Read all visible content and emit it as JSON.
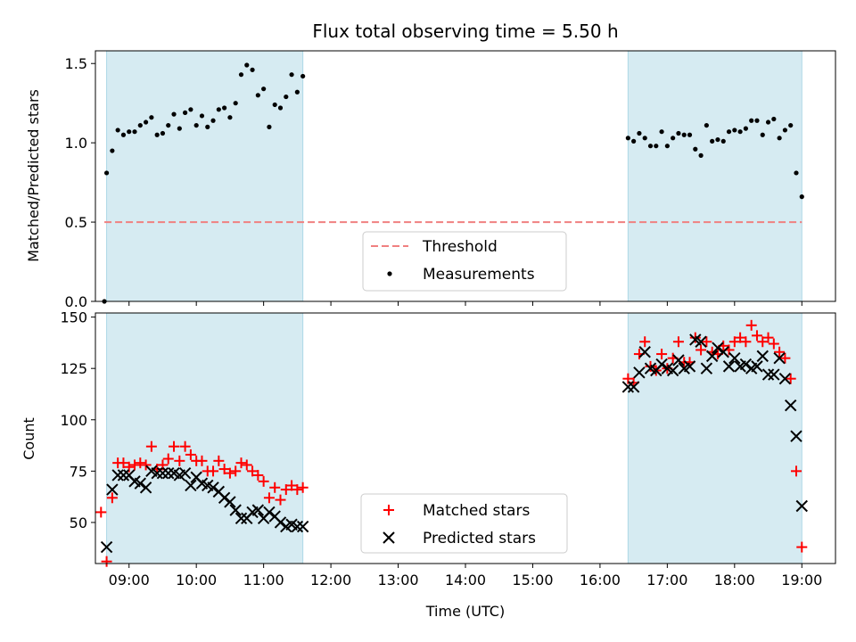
{
  "title": "Flux total observing time = 5.50 h",
  "chart_data": [
    {
      "type": "scatter",
      "ylabel": "Matched/Predicted stars",
      "ylim": [
        0.0,
        1.58
      ],
      "yticks": [
        "0.0",
        "0.5",
        "1.0",
        "1.5"
      ],
      "ytick_values": [
        0.0,
        0.5,
        1.0,
        1.5
      ],
      "xlim": [
        "08:30",
        "19:30"
      ],
      "shaded_spans": [
        [
          "08:40",
          "11:35"
        ],
        [
          "16:25",
          "19:00"
        ]
      ],
      "legend_position": "lower-center",
      "threshold": {
        "name": "Threshold",
        "value": 0.5,
        "x_range": [
          "08:38",
          "19:00"
        ],
        "color": "#f08080"
      },
      "series": [
        {
          "name": "Measurements",
          "color": "#000000",
          "x": [
            "08:38",
            "08:40",
            "08:45",
            "08:50",
            "08:55",
            "09:00",
            "09:05",
            "09:10",
            "09:15",
            "09:20",
            "09:25",
            "09:30",
            "09:35",
            "09:40",
            "09:45",
            "09:50",
            "09:55",
            "10:00",
            "10:05",
            "10:10",
            "10:15",
            "10:20",
            "10:25",
            "10:30",
            "10:35",
            "10:40",
            "10:45",
            "10:50",
            "10:55",
            "11:00",
            "11:05",
            "11:10",
            "11:15",
            "11:20",
            "11:25",
            "11:30",
            "11:35",
            "16:25",
            "16:30",
            "16:35",
            "16:40",
            "16:45",
            "16:50",
            "16:55",
            "17:00",
            "17:05",
            "17:10",
            "17:15",
            "17:20",
            "17:25",
            "17:30",
            "17:35",
            "17:40",
            "17:45",
            "17:50",
            "17:55",
            "18:00",
            "18:05",
            "18:10",
            "18:15",
            "18:20",
            "18:25",
            "18:30",
            "18:35",
            "18:40",
            "18:45",
            "18:50",
            "18:55",
            "19:00"
          ],
          "y": [
            0.0,
            0.81,
            0.95,
            1.08,
            1.05,
            1.07,
            1.07,
            1.11,
            1.13,
            1.16,
            1.05,
            1.06,
            1.11,
            1.18,
            1.09,
            1.19,
            1.21,
            1.11,
            1.17,
            1.1,
            1.14,
            1.21,
            1.22,
            1.16,
            1.25,
            1.43,
            1.49,
            1.46,
            1.3,
            1.34,
            1.1,
            1.24,
            1.22,
            1.29,
            1.43,
            1.32,
            1.42,
            1.03,
            1.01,
            1.06,
            1.03,
            0.98,
            0.98,
            1.07,
            0.98,
            1.03,
            1.06,
            1.05,
            1.05,
            0.96,
            0.92,
            1.11,
            1.01,
            1.02,
            1.01,
            1.07,
            1.08,
            1.07,
            1.09,
            1.14,
            1.14,
            1.05,
            1.13,
            1.15,
            1.03,
            1.08,
            1.11,
            0.81,
            0.66
          ]
        }
      ]
    },
    {
      "type": "scatter",
      "xlabel": "Time (UTC)",
      "ylabel": "Count",
      "ylim": [
        30,
        152
      ],
      "yticks": [
        "50",
        "75",
        "100",
        "125",
        "150"
      ],
      "ytick_values": [
        50,
        75,
        100,
        125,
        150
      ],
      "xlim": [
        "08:30",
        "19:30"
      ],
      "xticks": [
        "09:00",
        "10:00",
        "11:00",
        "12:00",
        "13:00",
        "14:00",
        "15:00",
        "16:00",
        "17:00",
        "18:00",
        "19:00"
      ],
      "shaded_spans": [
        [
          "08:40",
          "11:35"
        ],
        [
          "16:25",
          "19:00"
        ]
      ],
      "legend_position": "lower-center",
      "series": [
        {
          "name": "Matched stars",
          "marker": "plus",
          "color": "#ff0000",
          "x": [
            "08:35",
            "08:40",
            "08:45",
            "08:50",
            "08:55",
            "09:00",
            "09:05",
            "09:10",
            "09:15",
            "09:20",
            "09:25",
            "09:30",
            "09:35",
            "09:40",
            "09:45",
            "09:50",
            "09:55",
            "10:00",
            "10:05",
            "10:10",
            "10:15",
            "10:20",
            "10:25",
            "10:30",
            "10:35",
            "10:40",
            "10:45",
            "10:50",
            "10:55",
            "11:00",
            "11:05",
            "11:10",
            "11:15",
            "11:20",
            "11:25",
            "11:30",
            "11:35",
            "16:25",
            "16:30",
            "16:35",
            "16:40",
            "16:45",
            "16:50",
            "16:55",
            "17:00",
            "17:05",
            "17:10",
            "17:15",
            "17:20",
            "17:25",
            "17:30",
            "17:35",
            "17:40",
            "17:45",
            "17:50",
            "17:55",
            "18:00",
            "18:05",
            "18:10",
            "18:15",
            "18:20",
            "18:25",
            "18:30",
            "18:35",
            "18:40",
            "18:45",
            "18:50",
            "18:55",
            "19:00",
            "19:05"
          ],
          "y": [
            55,
            31,
            62,
            79,
            79,
            77,
            78,
            79,
            78,
            87,
            76,
            78,
            81,
            87,
            80,
            87,
            83,
            80,
            80,
            75,
            75,
            80,
            76,
            74,
            75,
            79,
            78,
            75,
            73,
            70,
            62,
            67,
            61,
            66,
            68,
            66,
            67,
            120,
            118,
            132,
            138,
            126,
            124,
            132,
            125,
            130,
            138,
            128,
            128,
            140,
            134,
            138,
            133,
            132,
            136,
            134,
            138,
            140,
            138,
            146,
            141,
            138,
            140,
            137,
            133,
            130,
            120,
            75,
            38,
            null
          ]
        },
        {
          "name": "Predicted stars",
          "marker": "x",
          "color": "#000000",
          "x": [
            "08:40",
            "08:45",
            "08:50",
            "08:55",
            "09:00",
            "09:05",
            "09:10",
            "09:15",
            "09:20",
            "09:25",
            "09:30",
            "09:35",
            "09:40",
            "09:45",
            "09:50",
            "09:55",
            "10:00",
            "10:05",
            "10:10",
            "10:15",
            "10:20",
            "10:25",
            "10:30",
            "10:35",
            "10:40",
            "10:45",
            "10:50",
            "10:55",
            "11:00",
            "11:05",
            "11:10",
            "11:15",
            "11:20",
            "11:25",
            "11:30",
            "11:35",
            "16:25",
            "16:30",
            "16:35",
            "16:40",
            "16:45",
            "16:50",
            "16:55",
            "17:00",
            "17:05",
            "17:10",
            "17:15",
            "17:20",
            "17:25",
            "17:30",
            "17:35",
            "17:40",
            "17:45",
            "17:50",
            "17:55",
            "18:00",
            "18:05",
            "18:10",
            "18:15",
            "18:20",
            "18:25",
            "18:30",
            "18:35",
            "18:40",
            "18:45",
            "18:50",
            "18:55",
            "19:00"
          ],
          "y": [
            38,
            66,
            73,
            73,
            73,
            70,
            69,
            67,
            75,
            74,
            74,
            74,
            74,
            73,
            74,
            68,
            72,
            69,
            68,
            67,
            65,
            62,
            60,
            56,
            52,
            52,
            55,
            56,
            52,
            55,
            53,
            50,
            48,
            49,
            48,
            48,
            116,
            116,
            123,
            133,
            125,
            124,
            127,
            125,
            124,
            129,
            125,
            126,
            139,
            138,
            125,
            131,
            135,
            133,
            126,
            130,
            126,
            127,
            125,
            126,
            131,
            122,
            122,
            130,
            120,
            107,
            92,
            58
          ]
        }
      ]
    }
  ]
}
